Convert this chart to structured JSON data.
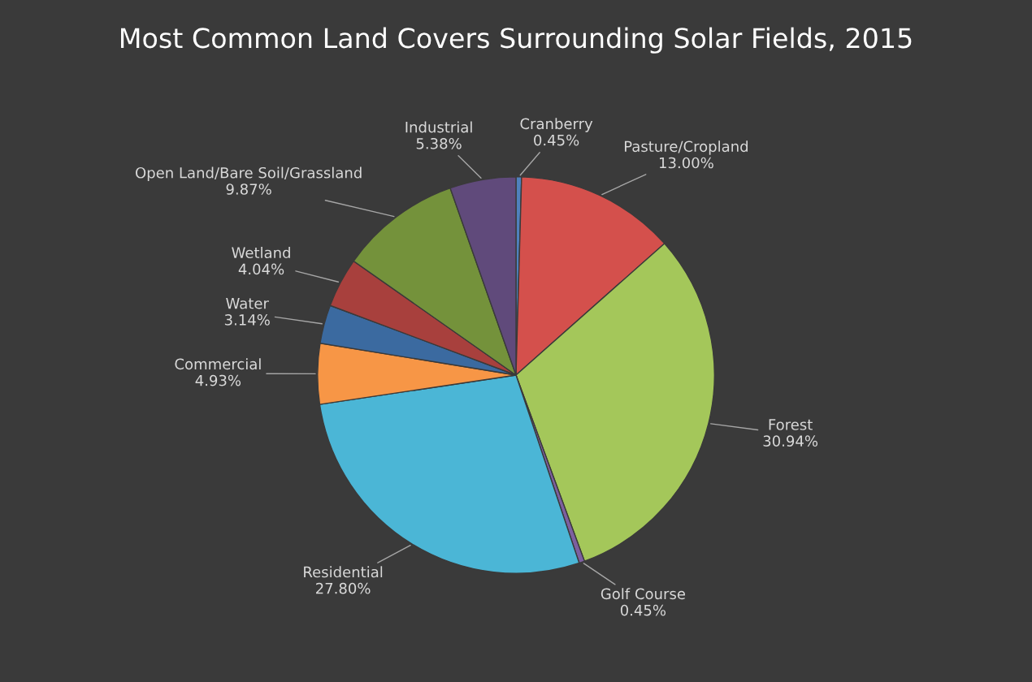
{
  "chart_data": {
    "type": "pie",
    "title": "Most Common Land Covers Surrounding Solar Fields, 2015",
    "categories": [
      "Cranberry",
      "Pasture/Cropland",
      "Forest",
      "Golf Course",
      "Residential",
      "Commercial",
      "Water",
      "Wetland",
      "Open Land/Bare Soil/Grassland",
      "Industrial"
    ],
    "values": [
      0.45,
      13.0,
      30.94,
      0.45,
      27.8,
      4.93,
      3.14,
      4.04,
      9.87,
      5.38
    ],
    "value_labels": [
      "0.45%",
      "13.00%",
      "30.94%",
      "0.45%",
      "27.80%",
      "4.93%",
      "3.14%",
      "4.04%",
      "9.87%",
      "5.38%"
    ],
    "colors": [
      "#4f81bd",
      "#d4504c",
      "#a4c75a",
      "#7d5fa0",
      "#4bb6d6",
      "#f79646",
      "#3b6aa0",
      "#a8403d",
      "#74923b",
      "#604a7b"
    ]
  }
}
